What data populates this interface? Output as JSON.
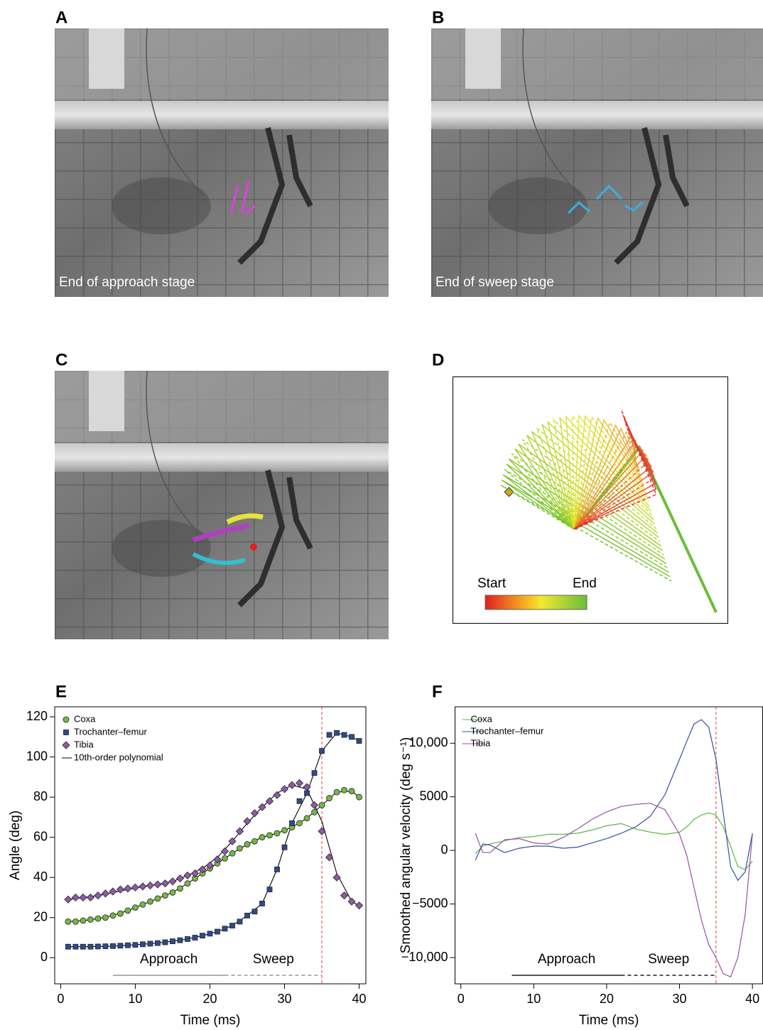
{
  "panel_labels": [
    "A",
    "B",
    "C",
    "D",
    "E",
    "F"
  ],
  "photos": [
    {
      "caption": "End of approach stage"
    },
    {
      "caption": "End of sweep stage"
    }
  ],
  "diagram": {
    "start_label": "Start",
    "end_label": "End"
  },
  "chart_data": [
    {
      "type": "scatter",
      "xlabel": "Time (ms)",
      "ylabel": "Angle (deg)",
      "xlim": [
        -0.8,
        40.9
      ],
      "ylim": [
        -13,
        125
      ],
      "xticks": [
        0,
        10,
        20,
        30,
        40
      ],
      "yticks": [
        0,
        20,
        40,
        60,
        80,
        100,
        120
      ],
      "x": [
        1,
        2,
        3,
        4,
        5,
        6,
        7,
        8,
        9,
        10,
        11,
        12,
        13,
        14,
        15,
        16,
        17,
        18,
        19,
        20,
        21,
        22,
        23,
        24,
        25,
        26,
        27,
        28,
        29,
        30,
        31,
        32,
        33,
        34,
        35,
        36,
        37,
        38,
        39,
        40
      ],
      "series": [
        {
          "name": "Coxa",
          "color": "#74b843",
          "marker": "circle",
          "values": [
            18,
            18,
            18.5,
            19,
            19.5,
            20,
            21,
            22,
            23.5,
            25,
            26.5,
            28,
            29.5,
            31,
            32.5,
            34.5,
            37,
            39.5,
            42,
            44.5,
            47,
            49.5,
            52,
            54.5,
            56.5,
            58,
            60,
            61,
            62,
            63.5,
            65,
            67,
            69.5,
            72.5,
            76,
            79.5,
            82.5,
            83.5,
            83,
            80
          ]
        },
        {
          "name": "Trochanter–femur",
          "color": "#2d4b8e",
          "marker": "square",
          "values": [
            5.5,
            5.5,
            5.5,
            5.5,
            5.6,
            5.7,
            5.8,
            6,
            6.2,
            6.4,
            6.7,
            7,
            7.3,
            7.7,
            8.2,
            8.7,
            9.3,
            10,
            11,
            12,
            13,
            14.5,
            16,
            18,
            21,
            23,
            27,
            34,
            44,
            55,
            67,
            78,
            82,
            92,
            103,
            111,
            112,
            111,
            110,
            108
          ]
        },
        {
          "name": "Tibia",
          "color": "#8f5aa9",
          "marker": "diamond",
          "values": [
            29,
            30,
            30,
            30,
            31,
            32,
            33,
            34,
            34.5,
            35,
            35.5,
            36,
            36.5,
            37,
            38,
            39.5,
            41,
            42,
            44,
            46,
            49,
            53,
            58,
            63,
            68,
            72,
            75,
            78,
            81,
            84,
            86,
            87,
            85,
            76,
            63,
            50,
            40,
            31,
            28,
            26
          ]
        }
      ],
      "fit": {
        "name": "10th-order polynomial",
        "color": "#000000",
        "x": [
          1,
          3,
          5,
          7,
          9,
          11,
          13,
          15,
          17,
          19,
          21,
          23,
          25,
          27,
          29,
          31,
          33,
          35,
          37,
          39,
          40
        ],
        "curves": [
          [
            18,
            18.5,
            19.5,
            21,
            23.5,
            26.5,
            29.5,
            32.5,
            37,
            42,
            47,
            52,
            56.5,
            60,
            62,
            65,
            69.5,
            76,
            82.5,
            83,
            80
          ],
          [
            5.5,
            5.5,
            5.6,
            5.8,
            6.2,
            6.7,
            7.3,
            8.2,
            9.3,
            11,
            13,
            16,
            21,
            27,
            44,
            67,
            82,
            103,
            112,
            110,
            108
          ],
          [
            29,
            30,
            31,
            32.5,
            34,
            35.3,
            36.5,
            38,
            41,
            44.5,
            50,
            58,
            67,
            75,
            82,
            86,
            84,
            68,
            42,
            28,
            26
          ]
        ]
      },
      "marker_x": 35,
      "marker_color": "#e0403a",
      "phase_color": "#b0b0b0",
      "phases": [
        {
          "label": "Approach",
          "start": 7,
          "end": 22
        },
        {
          "label": "Sweep",
          "start": 22,
          "end": 35
        }
      ]
    },
    {
      "type": "line",
      "xlabel": "Time (ms)",
      "ylabel": "Smoothed angular velocity (deg s⁻¹)",
      "xlim": [
        -0.8,
        41.4
      ],
      "ylim": [
        -12450,
        13400
      ],
      "xticks": [
        0,
        10,
        20,
        30,
        40
      ],
      "yticks": [
        {
          "value": -10000,
          "label": "−10,000"
        },
        {
          "value": -5000,
          "label": "−5000"
        },
        0,
        5000,
        {
          "value": 10000,
          "label": "10,000"
        }
      ],
      "x": [
        2,
        3,
        4,
        6,
        8,
        10,
        12,
        14,
        16,
        18,
        20,
        22,
        24,
        26,
        28,
        30,
        31,
        32,
        33,
        34,
        35,
        36,
        37,
        38,
        39,
        40
      ],
      "series": [
        {
          "name": "Coxa",
          "color": "#5cb846",
          "values": [
            -300,
            400,
            600,
            900,
            1200,
            1300,
            1500,
            1500,
            1600,
            1900,
            2300,
            2500,
            2000,
            1700,
            1500,
            1700,
            2200,
            2900,
            3300,
            3500,
            3300,
            2200,
            400,
            -1500,
            -1800,
            -1000
          ]
        },
        {
          "name": "Trochanter–femur",
          "color": "#3a4fa0",
          "values": [
            -900,
            600,
            500,
            -200,
            200,
            400,
            400,
            200,
            300,
            700,
            1100,
            1600,
            2200,
            3200,
            5200,
            8500,
            10200,
            11800,
            12200,
            11500,
            8500,
            3500,
            -1500,
            -2800,
            -2000,
            1600
          ]
        },
        {
          "name": "Tibia",
          "color": "#9a4ea8",
          "values": [
            1600,
            -200,
            -200,
            1000,
            1100,
            700,
            600,
            1200,
            2000,
            2900,
            3600,
            4100,
            4300,
            4400,
            3800,
            1500,
            -500,
            -3500,
            -6500,
            -8800,
            -10000,
            -11500,
            -11800,
            -10000,
            -6000,
            1500
          ]
        }
      ],
      "marker_x": 35,
      "marker_color": "#e0403a",
      "phase_color": "#555555",
      "phases": [
        {
          "label": "Approach",
          "start": 7,
          "end": 22
        },
        {
          "label": "Sweep",
          "start": 22,
          "end": 35
        }
      ]
    }
  ]
}
